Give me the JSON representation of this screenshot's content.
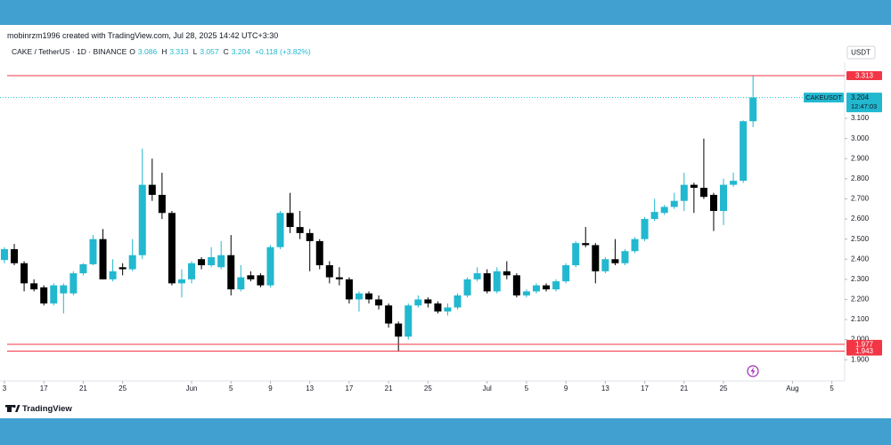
{
  "header": {
    "author_line": "mobinrzm1996 created with TradingView.com, Jul 28, 2025 14:42 UTC+3:30",
    "symbol": "CAKE / TetherUS · 1D · BINANCE",
    "ohlc": [
      {
        "key": "O",
        "value": "3.086"
      },
      {
        "key": "H",
        "value": "3.313"
      },
      {
        "key": "L",
        "value": "3.057"
      },
      {
        "key": "C",
        "value": "3.204"
      }
    ],
    "change": "+0.118 (+3.82%)"
  },
  "footer": {
    "brand": "TradingView"
  },
  "chart_data": {
    "type": "candlestick",
    "axis_unit": "USDT",
    "up_color": "#22b8cf",
    "down_color": "#000000",
    "open": [
      2.396,
      2.45,
      2.38,
      2.28,
      2.26,
      2.18,
      2.23,
      2.23,
      2.33,
      2.375,
      2.5,
      2.3,
      2.36,
      2.35,
      2.42,
      2.77,
      2.72,
      2.63,
      2.28,
      2.3,
      2.4,
      2.37,
      2.36,
      2.42,
      2.25,
      2.32,
      2.32,
      2.27,
      2.46,
      2.63,
      2.56,
      2.53,
      2.49,
      2.37,
      2.31,
      2.3,
      2.2,
      2.23,
      2.2,
      2.17,
      2.08,
      2.015,
      2.17,
      2.2,
      2.18,
      2.14,
      2.16,
      2.22,
      2.3,
      2.33,
      2.24,
      2.34,
      2.32,
      2.22,
      2.24,
      2.27,
      2.25,
      2.29,
      2.37,
      2.48,
      2.47,
      2.34,
      2.4,
      2.38,
      2.44,
      2.5,
      2.6,
      2.63,
      2.66,
      2.69,
      2.77,
      2.755,
      2.72,
      2.64,
      2.77,
      2.79,
      3.086
    ],
    "high": [
      2.46,
      2.476,
      2.39,
      2.3,
      2.27,
      2.28,
      2.28,
      2.34,
      2.38,
      2.52,
      2.55,
      2.4,
      2.38,
      2.5,
      2.95,
      2.9,
      2.83,
      2.64,
      2.35,
      2.39,
      2.41,
      2.46,
      2.49,
      2.52,
      2.37,
      2.34,
      2.33,
      2.47,
      2.64,
      2.73,
      2.64,
      2.55,
      2.5,
      2.39,
      2.36,
      2.31,
      2.24,
      2.24,
      2.22,
      2.18,
      2.09,
      2.18,
      2.22,
      2.21,
      2.19,
      2.18,
      2.23,
      2.31,
      2.36,
      2.35,
      2.36,
      2.39,
      2.33,
      2.25,
      2.28,
      2.28,
      2.3,
      2.38,
      2.49,
      2.56,
      2.48,
      2.41,
      2.5,
      2.45,
      2.51,
      2.61,
      2.7,
      2.67,
      2.73,
      2.83,
      2.78,
      3.0,
      2.73,
      2.8,
      2.83,
      3.09,
      3.313
    ],
    "low": [
      2.38,
      2.37,
      2.24,
      2.24,
      2.17,
      2.17,
      2.13,
      2.22,
      2.32,
      2.37,
      2.3,
      2.29,
      2.32,
      2.34,
      2.4,
      2.69,
      2.6,
      2.27,
      2.21,
      2.28,
      2.35,
      2.36,
      2.35,
      2.22,
      2.24,
      2.29,
      2.26,
      2.26,
      2.45,
      2.53,
      2.5,
      2.34,
      2.35,
      2.28,
      2.27,
      2.18,
      2.14,
      2.18,
      2.15,
      2.06,
      1.94,
      2.0,
      2.16,
      2.16,
      2.13,
      2.12,
      2.15,
      2.21,
      2.29,
      2.23,
      2.23,
      2.3,
      2.21,
      2.21,
      2.23,
      2.24,
      2.24,
      2.28,
      2.36,
      2.46,
      2.28,
      2.33,
      2.37,
      2.37,
      2.43,
      2.49,
      2.59,
      2.62,
      2.65,
      2.64,
      2.63,
      2.7,
      2.54,
      2.57,
      2.76,
      2.78,
      3.057
    ],
    "close": [
      2.45,
      2.38,
      2.28,
      2.25,
      2.18,
      2.27,
      2.27,
      2.33,
      2.375,
      2.5,
      2.3,
      2.34,
      2.35,
      2.42,
      2.77,
      2.72,
      2.63,
      2.28,
      2.3,
      2.38,
      2.37,
      2.41,
      2.42,
      2.25,
      2.31,
      2.3,
      2.27,
      2.46,
      2.63,
      2.56,
      2.53,
      2.49,
      2.37,
      2.31,
      2.3,
      2.2,
      2.23,
      2.2,
      2.17,
      2.08,
      2.015,
      2.17,
      2.2,
      2.18,
      2.14,
      2.16,
      2.22,
      2.3,
      2.33,
      2.24,
      2.34,
      2.32,
      2.22,
      2.24,
      2.27,
      2.25,
      2.29,
      2.37,
      2.48,
      2.47,
      2.34,
      2.4,
      2.38,
      2.44,
      2.5,
      2.6,
      2.635,
      2.66,
      2.69,
      2.77,
      2.755,
      2.71,
      2.64,
      2.77,
      2.79,
      3.086,
      3.204
    ],
    "xlim": [
      -0.45,
      85.3
    ],
    "xticks": [
      {
        "value": 0,
        "label": "3"
      },
      {
        "value": 4,
        "label": "17"
      },
      {
        "value": 8,
        "label": "21"
      },
      {
        "value": 12,
        "label": "25"
      },
      {
        "value": 19,
        "label": "Jun"
      },
      {
        "value": 23,
        "label": "5"
      },
      {
        "value": 27,
        "label": "9"
      },
      {
        "value": 31,
        "label": "13"
      },
      {
        "value": 35,
        "label": "17"
      },
      {
        "value": 39,
        "label": "21"
      },
      {
        "value": 43,
        "label": "25"
      },
      {
        "value": 49,
        "label": "Jul"
      },
      {
        "value": 53,
        "label": "5"
      },
      {
        "value": 57,
        "label": "9"
      },
      {
        "value": 61,
        "label": "13"
      },
      {
        "value": 65,
        "label": "17"
      },
      {
        "value": 69,
        "label": "21"
      },
      {
        "value": 73,
        "label": "25"
      },
      {
        "value": 80,
        "label": "Aug"
      },
      {
        "value": 84,
        "label": "5"
      }
    ],
    "ylim": [
      1.808,
      3.357
    ],
    "yticks": [
      {
        "value": 3.1,
        "label": "3.100"
      },
      {
        "value": 3.0,
        "label": "3.000"
      },
      {
        "value": 2.9,
        "label": "2.900"
      },
      {
        "value": 2.8,
        "label": "2.800"
      },
      {
        "value": 2.7,
        "label": "2.700"
      },
      {
        "value": 2.6,
        "label": "2.600"
      },
      {
        "value": 2.5,
        "label": "2.500"
      },
      {
        "value": 2.4,
        "label": "2.400"
      },
      {
        "value": 2.3,
        "label": "2.300"
      },
      {
        "value": 2.2,
        "label": "2.200"
      },
      {
        "value": 2.1,
        "label": "2.100"
      },
      {
        "value": 2.0,
        "label": "2.000"
      },
      {
        "value": 1.9,
        "label": "1.900"
      }
    ],
    "price_lines": [
      {
        "value": 3.313,
        "color": "#f23645"
      },
      {
        "value": 1.977,
        "color": "#f23645"
      },
      {
        "value": 1.943,
        "color": "#f23645"
      }
    ],
    "last_price": {
      "symbol": "CAKEUSDT",
      "value": 3.204,
      "countdown": "12:47:03",
      "color": "#22b8cf"
    }
  }
}
